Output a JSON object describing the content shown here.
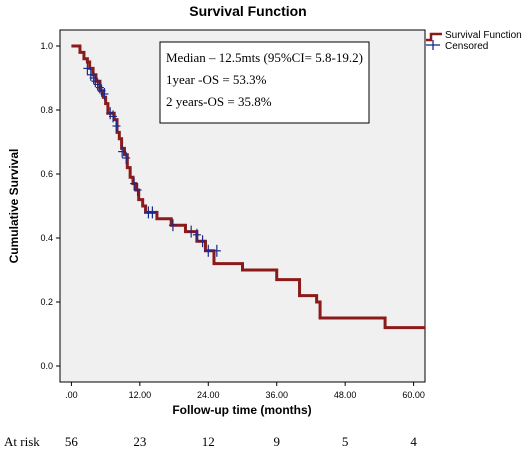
{
  "chart_data": {
    "type": "line",
    "title": "Survival Function",
    "xlabel": "Follow-up time (months)",
    "ylabel": "Cumulative Survival",
    "xlim": [
      -2,
      62
    ],
    "ylim": [
      -0.05,
      1.05
    ],
    "x_ticks": [
      0,
      12,
      24,
      36,
      48,
      60
    ],
    "x_tick_labels": [
      ".00",
      "12.00",
      "24.00",
      "36.00",
      "48.00",
      "60.00"
    ],
    "y_ticks": [
      0,
      0.2,
      0.4,
      0.6,
      0.8,
      1.0
    ],
    "y_tick_labels": [
      "0.0",
      "0.2",
      "0.4",
      "0.6",
      "0.8",
      "1.0"
    ],
    "grid": false,
    "legend_position": "top-right outside",
    "series": [
      {
        "name": "Survival Function",
        "color": "#8b1a1a",
        "steps": [
          [
            0,
            1.0
          ],
          [
            1.5,
            0.98
          ],
          [
            2.2,
            0.96
          ],
          [
            2.8,
            0.95
          ],
          [
            3.2,
            0.93
          ],
          [
            3.8,
            0.91
          ],
          [
            4.3,
            0.89
          ],
          [
            5.0,
            0.86
          ],
          [
            5.6,
            0.84
          ],
          [
            6.0,
            0.82
          ],
          [
            6.4,
            0.79
          ],
          [
            7.5,
            0.77
          ],
          [
            8.0,
            0.73
          ],
          [
            8.4,
            0.71
          ],
          [
            8.8,
            0.68
          ],
          [
            9.3,
            0.66
          ],
          [
            9.8,
            0.62
          ],
          [
            10.3,
            0.59
          ],
          [
            10.8,
            0.57
          ],
          [
            11.3,
            0.55
          ],
          [
            11.8,
            0.52
          ],
          [
            12.5,
            0.5
          ],
          [
            13.0,
            0.48
          ],
          [
            15.0,
            0.46
          ],
          [
            17.5,
            0.44
          ],
          [
            20.0,
            0.42
          ],
          [
            22.0,
            0.39
          ],
          [
            23.5,
            0.36
          ],
          [
            25.0,
            0.32
          ],
          [
            30.0,
            0.3
          ],
          [
            36.0,
            0.27
          ],
          [
            40.0,
            0.22
          ],
          [
            43.0,
            0.2
          ],
          [
            43.6,
            0.15
          ],
          [
            55.0,
            0.12
          ],
          [
            62.0,
            0.12
          ]
        ]
      },
      {
        "name": "Censored",
        "color": "#1a2a8b",
        "points": [
          [
            2.8,
            0.93
          ],
          [
            3.4,
            0.91
          ],
          [
            3.9,
            0.9
          ],
          [
            4.2,
            0.89
          ],
          [
            4.6,
            0.88
          ],
          [
            5.0,
            0.87
          ],
          [
            5.3,
            0.86
          ],
          [
            5.8,
            0.85
          ],
          [
            6.8,
            0.79
          ],
          [
            7.3,
            0.78
          ],
          [
            7.9,
            0.75
          ],
          [
            8.9,
            0.67
          ],
          [
            9.6,
            0.65
          ],
          [
            11.0,
            0.57
          ],
          [
            11.6,
            0.55
          ],
          [
            13.5,
            0.48
          ],
          [
            14.2,
            0.48
          ],
          [
            17.8,
            0.44
          ],
          [
            21.0,
            0.42
          ],
          [
            22.0,
            0.41
          ],
          [
            23.0,
            0.39
          ],
          [
            24.0,
            0.36
          ],
          [
            25.5,
            0.36
          ]
        ]
      }
    ],
    "legend": [
      "Survival Function",
      "Censored"
    ],
    "annotations": [
      "Median – 12.5mts (95%CI= 5.8-19.2)",
      "1year -OS = 53.3%",
      "2 years-OS = 35.8%"
    ],
    "at_risk": {
      "label": "At risk",
      "values": [
        "56",
        "23",
        "12",
        "9",
        "5",
        "4"
      ]
    }
  }
}
